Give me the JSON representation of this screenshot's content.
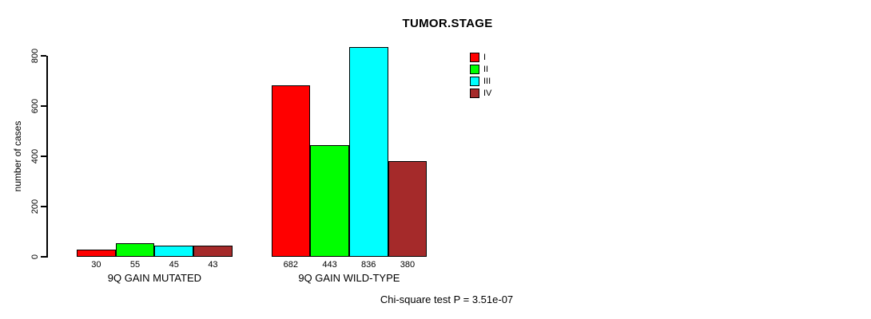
{
  "chart_data": {
    "type": "bar",
    "title": "TUMOR.STAGE",
    "xlabel": "",
    "ylabel": "number of cases",
    "ylim": [
      0,
      800
    ],
    "yticks": [
      0,
      200,
      400,
      600,
      800
    ],
    "grid": false,
    "legend_position": "top-right",
    "categories": [
      "9Q GAIN MUTATED",
      "9Q GAIN WILD-TYPE"
    ],
    "series": [
      {
        "name": "I",
        "color": "#ff0000",
        "values": [
          30,
          682
        ]
      },
      {
        "name": "II",
        "color": "#00ff00",
        "values": [
          55,
          443
        ]
      },
      {
        "name": "III",
        "color": "#00ffff",
        "values": [
          45,
          836
        ]
      },
      {
        "name": "IV",
        "color": "#a52a2a",
        "values": [
          43,
          380
        ]
      }
    ],
    "bar_value_labels": [
      [
        "30",
        "55",
        "45",
        "43"
      ],
      [
        "682",
        "443",
        "836",
        "380"
      ]
    ],
    "annotation": "Chi-square test P = 3.51e-07"
  }
}
